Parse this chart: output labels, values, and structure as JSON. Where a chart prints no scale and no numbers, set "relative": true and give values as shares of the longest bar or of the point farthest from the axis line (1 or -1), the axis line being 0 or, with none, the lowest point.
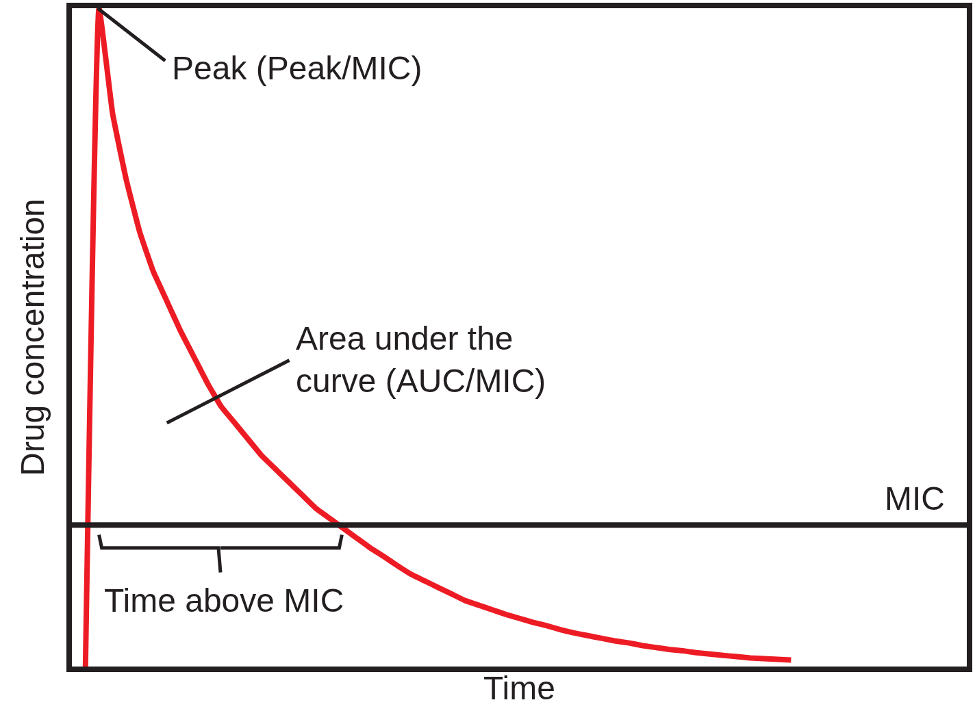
{
  "chart_data": {
    "type": "line",
    "relative": true,
    "xlabel": "Time",
    "ylabel": "Drug concentration",
    "categories": [
      null,
      null,
      null,
      null,
      null,
      null,
      null,
      null,
      null,
      null,
      null,
      null,
      null,
      null,
      null,
      null,
      null,
      null,
      null,
      null,
      null,
      null,
      null,
      null,
      null,
      null,
      null,
      null,
      null,
      null,
      null,
      null,
      null,
      null,
      null,
      null,
      null,
      null,
      null,
      null,
      null,
      null,
      null,
      null,
      null,
      null,
      null,
      null,
      null,
      null,
      null,
      null,
      null,
      null,
      null,
      null,
      null,
      null,
      null,
      null,
      null,
      null,
      null,
      null,
      null,
      null
    ],
    "series": [
      {
        "color": "#ed1c24",
        "values": [
          0,
          1,
          0.84,
          0.74,
          0.66,
          0.6,
          0.555,
          0.51,
          0.47,
          0.43,
          0.395,
          0.37,
          0.345,
          0.32,
          0.3,
          0.28,
          0.26,
          0.24,
          0.225,
          0.21,
          0.195,
          0.18,
          0.167,
          0.153,
          0.14,
          0.13,
          0.12,
          0.11,
          0.1,
          0.093,
          0.086,
          0.079,
          0.073,
          0.067,
          0.062,
          0.056,
          0.051,
          0.047,
          0.043,
          0.039,
          0.036,
          0.032,
          0.029,
          0.026,
          0.024,
          0.021,
          0.019,
          0.017,
          0.015,
          0.013,
          0.012,
          0.011,
          0.01,
          null,
          null,
          null,
          null,
          null,
          null,
          null,
          null,
          null,
          null,
          null,
          null,
          null
        ]
      }
    ],
    "ref_lines": [
      {
        "axis": "y",
        "value": 0.215,
        "label": "MIC",
        "color": "#231f20"
      }
    ],
    "annotations": [
      "Peak (Peak/MIC)",
      "Area under the\ncurve (AUC/MIC)",
      "Time above MIC"
    ],
    "marker": "none",
    "line_style": "solid"
  }
}
